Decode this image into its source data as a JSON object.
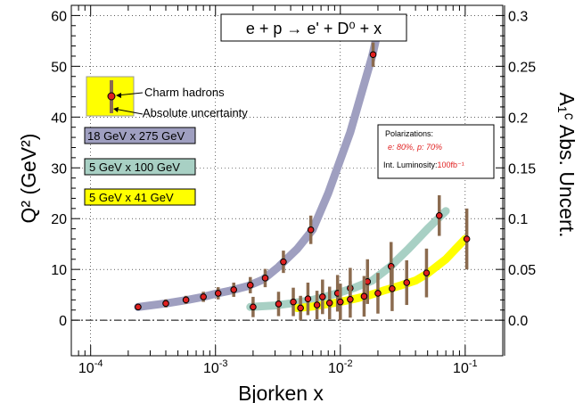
{
  "chart_data": {
    "type": "scatter",
    "title": "e + p → e' + D⁰ + x",
    "xlabel": "Bjorken x",
    "ylabel_left": "Q² (GeV²)",
    "ylabel_right": "A₁ᶜ Abs. Uncert.",
    "xscale": "log",
    "xlim": [
      7e-05,
      0.2
    ],
    "ylim_left": [
      -7,
      62
    ],
    "ylim_right": [
      -0.035,
      0.31
    ],
    "x_tick_labels": [
      "10-4",
      "10-3",
      "10-2",
      "10-1"
    ],
    "x_ticks": [
      0.0001,
      0.001,
      0.01,
      0.1
    ],
    "y_left_ticks": [
      0,
      10,
      20,
      30,
      40,
      50,
      60
    ],
    "y_left_tick_labels": [
      "0",
      "10",
      "20",
      "30",
      "40",
      "50",
      "60"
    ],
    "y_right_ticks": [
      0.0,
      0.05,
      0.1,
      0.15,
      0.2,
      0.25,
      0.3
    ],
    "y_right_tick_labels": [
      "0.0",
      "0.05",
      "0.1",
      "0.15",
      "0.2",
      "0.25",
      "0.3"
    ],
    "grid": true,
    "legend": {
      "marker_label": "Charm hadrons",
      "bar_label": "Absolute uncertainty",
      "placement": "top-left"
    },
    "info_box": {
      "line1": "Polarizations:",
      "line2": "e: 80%,   p: 70%",
      "line3_prefix": "Int. Luminosity:",
      "line3_value": "100fb⁻¹"
    },
    "series": [
      {
        "name": "18 GeV x 275 GeV",
        "color": "#9f9fc0",
        "band": [
          [
            0.00024,
            2.6
          ],
          [
            0.0004,
            3.3
          ],
          [
            0.0006,
            4.0
          ],
          [
            0.0008,
            4.6
          ],
          [
            0.001,
            5.2
          ],
          [
            0.0013,
            5.8
          ],
          [
            0.0018,
            6.7
          ],
          [
            0.0024,
            8.0
          ],
          [
            0.0032,
            10.5
          ],
          [
            0.0045,
            14.0
          ],
          [
            0.006,
            17.8
          ],
          [
            0.008,
            25.0
          ],
          [
            0.012,
            37.0
          ],
          [
            0.018,
            52.0
          ],
          [
            0.02,
            57.0
          ]
        ],
        "points": [
          {
            "x": 0.00024,
            "q2": 2.6,
            "unc": 0.003
          },
          {
            "x": 0.0004,
            "q2": 3.3,
            "unc": 0.004
          },
          {
            "x": 0.00058,
            "q2": 4.0,
            "unc": 0.004
          },
          {
            "x": 0.0008,
            "q2": 4.6,
            "unc": 0.005
          },
          {
            "x": 0.00105,
            "q2": 5.3,
            "unc": 0.006
          },
          {
            "x": 0.0014,
            "q2": 6.0,
            "unc": 0.007
          },
          {
            "x": 0.0019,
            "q2": 6.9,
            "unc": 0.008
          },
          {
            "x": 0.0025,
            "q2": 8.3,
            "unc": 0.009
          },
          {
            "x": 0.0035,
            "q2": 11.5,
            "unc": 0.011
          },
          {
            "x": 0.0058,
            "q2": 17.8,
            "unc": 0.014
          },
          {
            "x": 0.0183,
            "q2": 52.3,
            "unc": 0.012
          }
        ]
      },
      {
        "name": "5 GeV x 100 GeV",
        "color": "#a8d0c4",
        "band": [
          [
            0.0019,
            2.6
          ],
          [
            0.003,
            2.9
          ],
          [
            0.004,
            3.3
          ],
          [
            0.006,
            4.0
          ],
          [
            0.008,
            4.8
          ],
          [
            0.01,
            5.5
          ],
          [
            0.013,
            6.4
          ],
          [
            0.018,
            7.8
          ],
          [
            0.025,
            10.5
          ],
          [
            0.035,
            14.0
          ],
          [
            0.05,
            18.0
          ],
          [
            0.07,
            21.5
          ]
        ],
        "points": [
          {
            "x": 0.002,
            "q2": 2.6,
            "unc": 0.01
          },
          {
            "x": 0.0032,
            "q2": 3.2,
            "unc": 0.012
          },
          {
            "x": 0.0042,
            "q2": 3.6,
            "unc": 0.014
          },
          {
            "x": 0.0055,
            "q2": 4.2,
            "unc": 0.016
          },
          {
            "x": 0.0072,
            "q2": 4.6,
            "unc": 0.017
          },
          {
            "x": 0.0095,
            "q2": 5.3,
            "unc": 0.018
          },
          {
            "x": 0.012,
            "q2": 6.3,
            "unc": 0.02
          },
          {
            "x": 0.0165,
            "q2": 7.6,
            "unc": 0.022
          },
          {
            "x": 0.0255,
            "q2": 10.6,
            "unc": 0.024
          },
          {
            "x": 0.062,
            "q2": 20.6,
            "unc": 0.02
          }
        ]
      },
      {
        "name": "5 GeV x 41 GeV",
        "color": "#ffff00",
        "band": [
          [
            0.0045,
            2.4
          ],
          [
            0.006,
            2.7
          ],
          [
            0.008,
            3.2
          ],
          [
            0.01,
            3.6
          ],
          [
            0.013,
            4.2
          ],
          [
            0.017,
            4.9
          ],
          [
            0.022,
            5.8
          ],
          [
            0.03,
            6.8
          ],
          [
            0.04,
            7.8
          ],
          [
            0.05,
            9.2
          ],
          [
            0.07,
            12.0
          ],
          [
            0.1,
            16.0
          ]
        ],
        "points": [
          {
            "x": 0.0048,
            "q2": 2.4,
            "unc": 0.012
          },
          {
            "x": 0.0065,
            "q2": 3.0,
            "unc": 0.014
          },
          {
            "x": 0.0082,
            "q2": 3.4,
            "unc": 0.016
          },
          {
            "x": 0.01,
            "q2": 3.6,
            "unc": 0.018
          },
          {
            "x": 0.012,
            "q2": 4.1,
            "unc": 0.018
          },
          {
            "x": 0.0155,
            "q2": 4.7,
            "unc": 0.02
          },
          {
            "x": 0.02,
            "q2": 5.3,
            "unc": 0.02
          },
          {
            "x": 0.026,
            "q2": 6.2,
            "unc": 0.022
          },
          {
            "x": 0.034,
            "q2": 7.4,
            "unc": 0.022
          },
          {
            "x": 0.049,
            "q2": 9.3,
            "unc": 0.024
          },
          {
            "x": 0.103,
            "q2": 16.0,
            "unc": 0.03
          }
        ]
      }
    ]
  }
}
